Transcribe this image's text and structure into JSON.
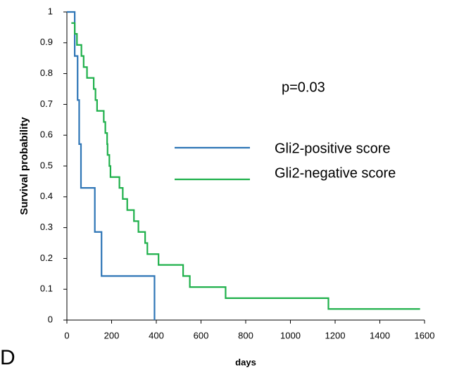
{
  "chart_data": {
    "type": "step",
    "annotation": "p=0.03",
    "panel_label": "D",
    "xlabel": "days",
    "ylabel": "Survival  probability",
    "xlim": [
      0,
      1600
    ],
    "ylim": [
      0,
      1
    ],
    "xticks": [
      0,
      200,
      400,
      600,
      800,
      1000,
      1200,
      1400,
      1600
    ],
    "yticks": [
      0,
      0.1,
      0.2,
      0.3,
      0.4,
      0.5,
      0.6,
      0.7,
      0.8,
      0.9,
      1
    ],
    "series": [
      {
        "name": "Gli2-positive score",
        "color": "#2e75b6",
        "x": [
          0,
          35,
          48,
          55,
          63,
          125,
          155,
          392
        ],
        "values": [
          1,
          0.857,
          0.714,
          0.571,
          0.429,
          0.286,
          0.143,
          0
        ]
      },
      {
        "name": "Gli2-negative score",
        "color": "#1fb04b",
        "x": [
          20,
          35,
          45,
          65,
          75,
          90,
          120,
          128,
          135,
          165,
          172,
          180,
          182,
          190,
          195,
          235,
          250,
          270,
          300,
          320,
          350,
          360,
          410,
          520,
          550,
          710,
          1170,
          1580
        ],
        "values": [
          0.964,
          0.929,
          0.893,
          0.857,
          0.821,
          0.786,
          0.75,
          0.714,
          0.679,
          0.643,
          0.607,
          0.571,
          0.536,
          0.5,
          0.464,
          0.429,
          0.393,
          0.357,
          0.321,
          0.286,
          0.25,
          0.214,
          0.179,
          0.143,
          0.107,
          0.071,
          0.036,
          0.036
        ]
      }
    ]
  }
}
